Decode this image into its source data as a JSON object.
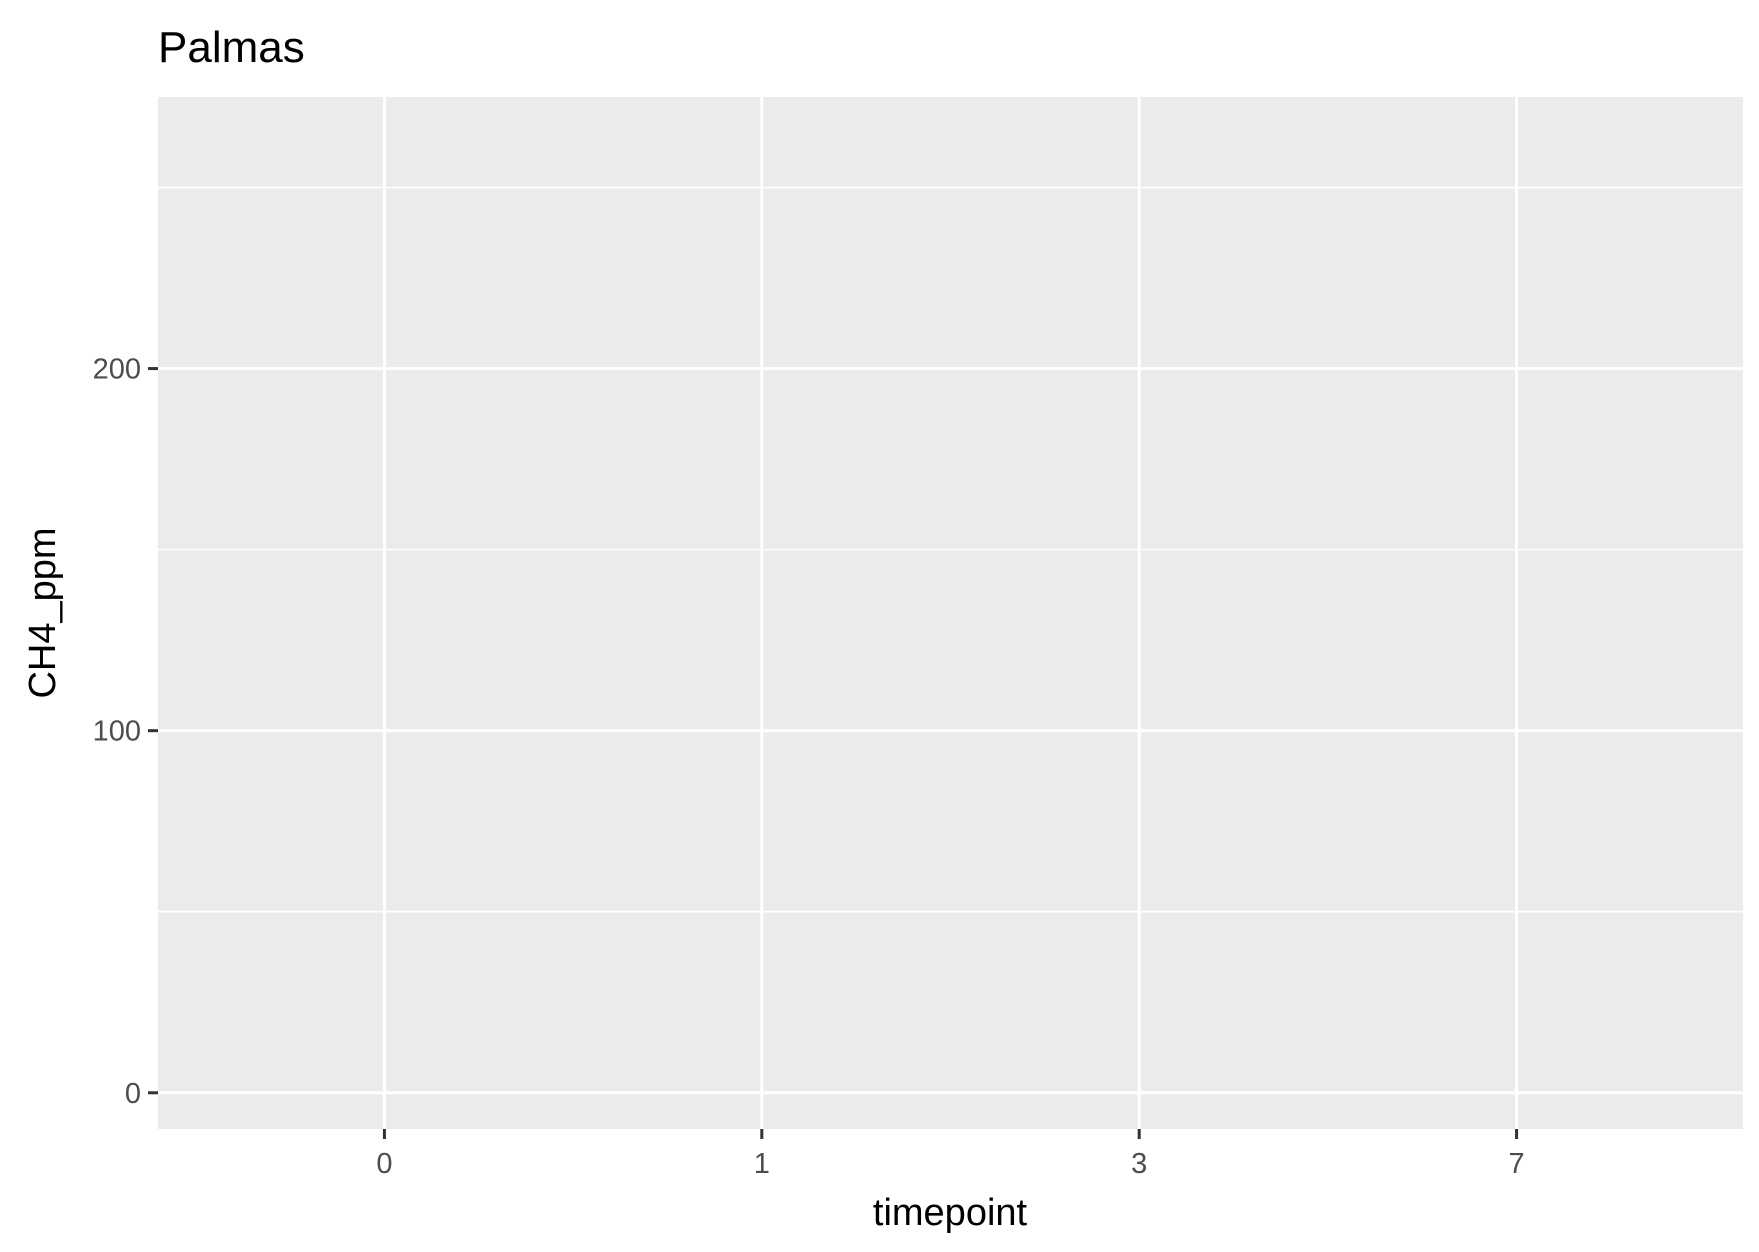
{
  "chart_data": {
    "type": "scatter",
    "title": "Palmas",
    "xlabel": "timepoint",
    "ylabel": "CH4_ppm",
    "x_scale": "discrete",
    "categories": [
      "0",
      "1",
      "3",
      "7"
    ],
    "y_ticks": [
      0,
      100,
      200
    ],
    "ylim": [
      -10,
      275
    ],
    "series": [],
    "grid": true,
    "legend": "none",
    "colors": {
      "panel_background": "#ebebeb",
      "grid_line": "#ffffff",
      "tick_label": "#4d4d4d",
      "axis_tick": "#333333",
      "text": "#000000"
    }
  }
}
